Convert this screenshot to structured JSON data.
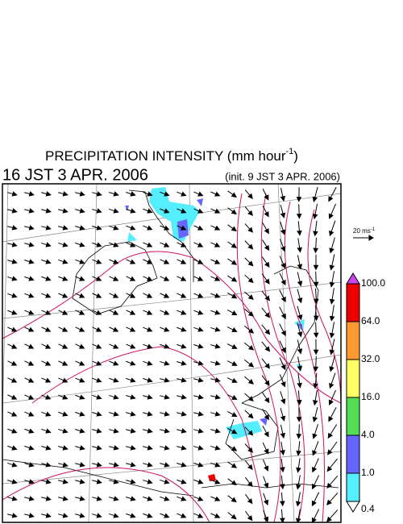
{
  "header": {
    "title": "PRECIPITATION INTENSITY (mm hour",
    "title_superscript": "-1",
    "title_close": ")",
    "valid_time": "16 JST 3 APR. 2006",
    "init_time": "(init. 9 JST 3 APR. 2006)"
  },
  "wind_scale": {
    "label": "20 ms",
    "superscript": "-1"
  },
  "legend": {
    "levels": [
      {
        "value": 100,
        "label": "100.0"
      },
      {
        "value": 64,
        "label": "64.0"
      },
      {
        "value": 32,
        "label": "32.0"
      },
      {
        "value": 16,
        "label": "16.0"
      },
      {
        "value": 4,
        "label": "4.0"
      },
      {
        "value": 1,
        "label": "1.0"
      },
      {
        "value": 0.4,
        "label": "0.4"
      }
    ],
    "colors": [
      "#ee0000",
      "#ff9933",
      "#ffff66",
      "#55dd55",
      "#6666ff",
      "#55eeff"
    ],
    "over_color": "#cc44ee",
    "under_color": "#ffffff"
  }
}
